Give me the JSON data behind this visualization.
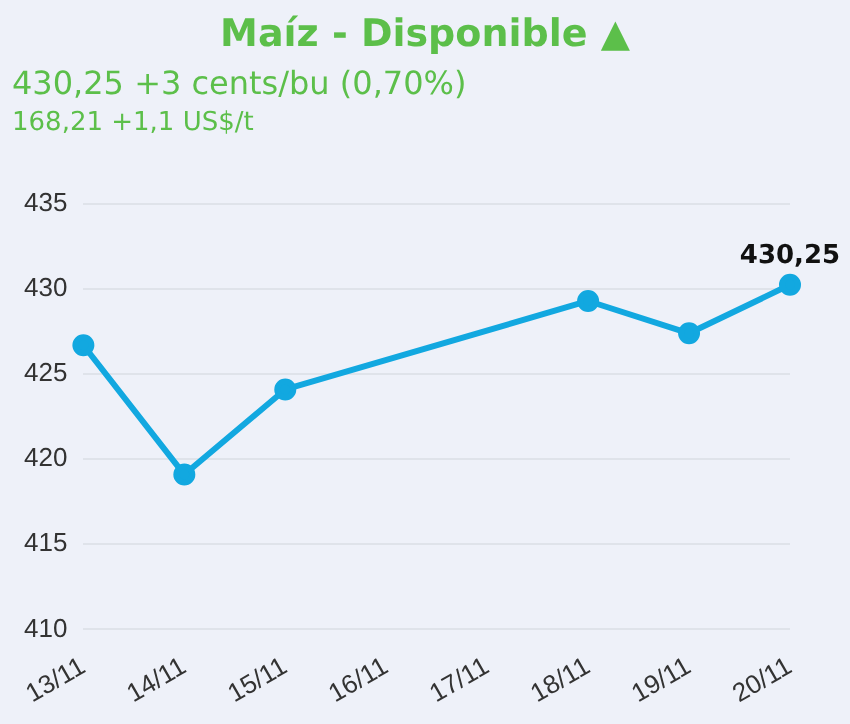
{
  "chart_data": {
    "type": "line",
    "title": "Maíz - Disponible ▲",
    "subtitle": "430,25 +3 cents/bu (0,70%)",
    "annotations": [
      "168,21 +1,1 US$/t"
    ],
    "categories": [
      "13/11",
      "14/11",
      "15/11",
      "16/11",
      "17/11",
      "18/11",
      "19/11",
      "20/11"
    ],
    "series": [
      {
        "color": "#12a8e0",
        "values": [
          426.7,
          419.1,
          424.1,
          null,
          null,
          429.3,
          427.4,
          430.25
        ],
        "value_labels": [
          null,
          null,
          null,
          null,
          null,
          null,
          null,
          "430,25"
        ]
      }
    ],
    "ylim": [
      410,
      435
    ],
    "yticks": [
      410,
      415,
      420,
      425,
      430,
      435
    ],
    "grid": "y",
    "legend": false,
    "marker": "circle",
    "line_style": "solid"
  }
}
